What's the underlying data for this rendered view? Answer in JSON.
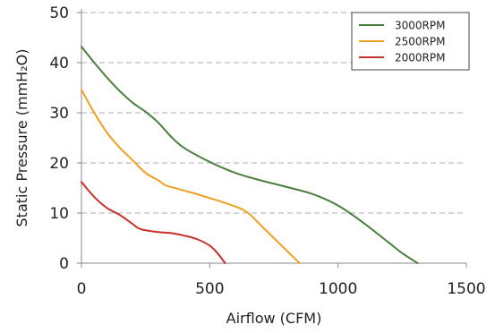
{
  "chart_data": {
    "type": "line",
    "title": "",
    "xlabel": "Airflow (CFM)",
    "ylabel": "Static Pressure (mmH₂O)",
    "xlim": [
      0,
      1500
    ],
    "ylim": [
      0,
      50
    ],
    "xticks": [
      0,
      500,
      1000,
      1500
    ],
    "yticks": [
      0,
      10,
      20,
      30,
      40,
      50
    ],
    "grid": "horizontal-dashed",
    "legend_position": "top-right",
    "series": [
      {
        "name": "3000RPM",
        "color": "#4a7f3f",
        "x": [
          0,
          50,
          100,
          150,
          200,
          250,
          300,
          350,
          400,
          500,
          600,
          700,
          800,
          900,
          1000,
          1100,
          1200,
          1250,
          1310
        ],
        "y": [
          43.2,
          40,
          37,
          34.3,
          32,
          30.2,
          28,
          25.2,
          23,
          20.2,
          18,
          16.5,
          15.2,
          13.8,
          11.5,
          8,
          4,
          2,
          0
        ]
      },
      {
        "name": "2500RPM",
        "color": "#f0a020",
        "x": [
          0,
          50,
          100,
          150,
          200,
          250,
          300,
          330,
          400,
          500,
          600,
          650,
          700,
          750,
          800,
          850
        ],
        "y": [
          34.6,
          30,
          26,
          23,
          20.5,
          18,
          16.5,
          15.5,
          14.5,
          13,
          11.3,
          10,
          7.5,
          5,
          2.5,
          0
        ]
      },
      {
        "name": "2000RPM",
        "color": "#c8302a",
        "x": [
          0,
          50,
          100,
          150,
          200,
          230,
          300,
          350,
          400,
          450,
          500,
          530,
          560
        ],
        "y": [
          16.2,
          13.2,
          11,
          9.6,
          7.8,
          6.8,
          6.2,
          6,
          5.5,
          4.8,
          3.5,
          2,
          0
        ]
      }
    ]
  }
}
